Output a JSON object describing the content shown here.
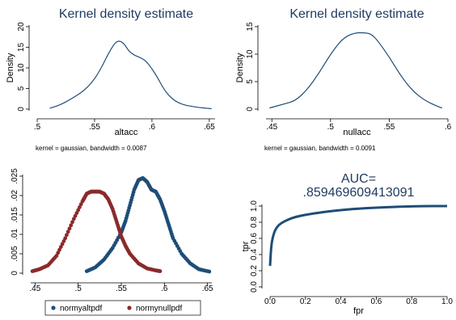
{
  "chart_data": [
    {
      "id": "altacc-kde",
      "type": "line",
      "title": "Kernel density estimate",
      "xlabel": "altacc",
      "ylabel": "Density",
      "note": "kernel = gaussian, bandwidth = 0.0087",
      "xlim": [
        0.5,
        0.655
      ],
      "ylim": [
        0,
        20
      ],
      "xticks": [
        0.5,
        0.55,
        0.6,
        0.65
      ],
      "xtick_labels": [
        ".5",
        ".55",
        ".6",
        ".65"
      ],
      "yticks": [
        0,
        5,
        10,
        15,
        20
      ],
      "ytick_labels": [
        "0",
        "5",
        "10",
        "15",
        "20"
      ],
      "series": [
        {
          "color": "#1e4d78",
          "x": [
            0.511,
            0.52,
            0.53,
            0.54,
            0.548,
            0.555,
            0.562,
            0.568,
            0.572,
            0.576,
            0.58,
            0.585,
            0.59,
            0.595,
            0.6,
            0.605,
            0.61,
            0.615,
            0.62,
            0.625,
            0.63,
            0.64,
            0.652
          ],
          "y": [
            0.2,
            1.0,
            2.5,
            4.3,
            6.5,
            9.5,
            13.5,
            16.2,
            16.6,
            15.8,
            14.0,
            13.0,
            12.5,
            11.6,
            9.8,
            7.6,
            5.0,
            3.2,
            2.0,
            1.3,
            0.9,
            0.4,
            0.1
          ]
        }
      ]
    },
    {
      "id": "nullacc-kde",
      "type": "line",
      "title": "Kernel density estimate",
      "xlabel": "nullacc",
      "ylabel": "Density",
      "note": "kernel = gaussian, bandwidth = 0.0091",
      "xlim": [
        0.445,
        0.6
      ],
      "ylim": [
        0,
        15
      ],
      "xticks": [
        0.45,
        0.5,
        0.55,
        0.6
      ],
      "xtick_labels": [
        ".45",
        ".5",
        ".55",
        ".6"
      ],
      "yticks": [
        0,
        5,
        10,
        15
      ],
      "ytick_labels": [
        "0",
        "5",
        "10",
        "15"
      ],
      "series": [
        {
          "color": "#1e4d78",
          "x": [
            0.448,
            0.46,
            0.47,
            0.48,
            0.49,
            0.5,
            0.51,
            0.52,
            0.53,
            0.535,
            0.54,
            0.55,
            0.56,
            0.57,
            0.58,
            0.59,
            0.595
          ],
          "y": [
            0.2,
            0.9,
            1.5,
            3.5,
            6.5,
            10.0,
            12.8,
            13.9,
            13.9,
            13.6,
            12.5,
            9.5,
            6.0,
            3.3,
            1.6,
            0.6,
            0.2
          ]
        }
      ]
    },
    {
      "id": "normal-pdfs",
      "type": "scatter",
      "xlim": [
        0.445,
        0.655
      ],
      "ylim": [
        0,
        0.025
      ],
      "xticks": [
        0.45,
        0.5,
        0.55,
        0.6,
        0.65
      ],
      "xtick_labels": [
        ".45",
        ".5",
        ".55",
        ".6",
        ".65"
      ],
      "yticks": [
        0,
        0.005,
        0.01,
        0.015,
        0.02,
        0.025
      ],
      "ytick_labels": [
        "0",
        ".005",
        ".01",
        ".015",
        ".02",
        ".025"
      ],
      "legend_position": "bottom",
      "series": [
        {
          "name": "normyaltpdf",
          "color": "#1e4d78",
          "x": [
            0.51,
            0.52,
            0.53,
            0.54,
            0.55,
            0.555,
            0.56,
            0.565,
            0.57,
            0.575,
            0.58,
            0.585,
            0.59,
            0.595,
            0.6,
            0.605,
            0.61,
            0.62,
            0.63,
            0.64,
            0.652
          ],
          "y": [
            0.0005,
            0.0015,
            0.0035,
            0.0065,
            0.0105,
            0.0135,
            0.0175,
            0.0215,
            0.024,
            0.0245,
            0.0235,
            0.0215,
            0.021,
            0.019,
            0.016,
            0.0125,
            0.009,
            0.005,
            0.0025,
            0.001,
            0.0004
          ]
        },
        {
          "name": "normynullpdf",
          "color": "#8b2a2a",
          "x": [
            0.447,
            0.455,
            0.465,
            0.475,
            0.485,
            0.495,
            0.505,
            0.51,
            0.515,
            0.52,
            0.525,
            0.53,
            0.535,
            0.54,
            0.545,
            0.55,
            0.555,
            0.56,
            0.57,
            0.58,
            0.59,
            0.595
          ],
          "y": [
            0.0005,
            0.001,
            0.002,
            0.0045,
            0.009,
            0.014,
            0.0185,
            0.0205,
            0.021,
            0.021,
            0.021,
            0.0205,
            0.019,
            0.0165,
            0.013,
            0.0095,
            0.007,
            0.005,
            0.0025,
            0.0012,
            0.0007,
            0.0005
          ]
        }
      ]
    },
    {
      "id": "roc-curve",
      "type": "line",
      "title": "AUC=",
      "subtitle": ".859469609413091",
      "xlabel": "fpr",
      "ylabel": "tpr",
      "xlim": [
        0,
        1
      ],
      "ylim": [
        0,
        1
      ],
      "xticks": [
        0,
        0.2,
        0.4,
        0.6,
        0.8,
        1.0
      ],
      "xtick_labels": [
        "0.0",
        "0.2",
        "0.4",
        "0.6",
        "0.8",
        "1.0"
      ],
      "yticks": [
        0,
        0.2,
        0.4,
        0.6,
        0.8,
        1.0
      ],
      "ytick_labels": [
        "0.0",
        "0.2",
        "0.4",
        "0.6",
        "0.8",
        "1.0"
      ],
      "series": [
        {
          "color": "#1e4d78",
          "x": [
            0.0,
            0.005,
            0.01,
            0.02,
            0.03,
            0.05,
            0.08,
            0.12,
            0.17,
            0.25,
            0.35,
            0.5,
            0.7,
            0.85,
            1.0
          ],
          "y": [
            0.26,
            0.45,
            0.56,
            0.65,
            0.71,
            0.77,
            0.81,
            0.85,
            0.88,
            0.91,
            0.94,
            0.97,
            0.99,
            1.0,
            1.0
          ]
        }
      ]
    }
  ]
}
